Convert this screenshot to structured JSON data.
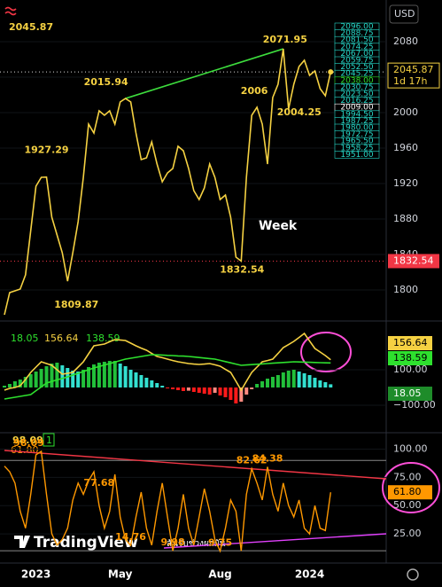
{
  "chart_data": [
    {
      "type": "line",
      "currency": "USD",
      "timeframe": "Week",
      "countdown": "1d 17h",
      "categories": [
        null,
        null,
        null,
        null,
        null,
        null,
        "2023",
        null,
        null,
        null,
        null,
        null,
        null,
        null,
        null,
        null,
        null,
        null,
        null,
        null,
        null,
        null,
        "May",
        null,
        null,
        null,
        null,
        null,
        null,
        null,
        null,
        null,
        null,
        null,
        null,
        null,
        null,
        null,
        null,
        null,
        null,
        "Aug",
        null,
        null,
        null,
        null,
        null,
        null,
        null,
        null,
        null,
        null,
        null,
        null,
        null,
        null,
        null,
        null,
        "2024",
        null,
        null,
        null,
        null
      ],
      "series": [
        {
          "color": "#f5d142",
          "values": [
            1772,
            1797,
            1799,
            1801,
            1817,
            1867,
            1917,
            1927,
            1927.29,
            1882,
            1862,
            1842,
            1809.87,
            1842,
            1877,
            1927,
            1987,
            1977,
            2002,
            1997,
            2002,
            1987,
            2012,
            2015.94,
            2012,
            1977,
            1947,
            1949,
            1967,
            1942,
            1922,
            1932,
            1937,
            1962,
            1957,
            1937,
            1912,
            1902,
            1915,
            1942,
            1927,
            1902,
            1907,
            1882,
            1837,
            1832.54,
            1927,
            1997,
            2006,
            1987,
            1942,
            2017,
            2032,
            2071.95,
            2004.25,
            2032,
            2052,
            2059,
            2042,
            2047,
            2027,
            2019,
            2045.87
          ]
        }
      ],
      "trendline_color": "#3ddc3d",
      "low_price": 1832.54,
      "price_levels": [
        "2096.00",
        "2088.75",
        "2081.50",
        "2074.25",
        "2067.00",
        "2059.75",
        "2052.50",
        "2045.25",
        "2038.00",
        "2030.75",
        "2023.50",
        "2016.25",
        "2009.00",
        "1994.50",
        "1987.25",
        "1980.00",
        "1972.75",
        "1965.50",
        "1958.25",
        "1951.00"
      ],
      "ylim": [
        1769,
        2127
      ],
      "yticks": [
        1800,
        1840,
        1880,
        1920,
        1960,
        2000,
        2040,
        2080
      ]
    },
    {
      "type": "macd",
      "hist_colors": [
        "#22c03a",
        "#33e0d0",
        "#ff8a80",
        "#ff1a1a"
      ],
      "series": [
        {
          "values": [
            10,
            20,
            35,
            45,
            60,
            75,
            90,
            105,
            120,
            135,
            140,
            125,
            110,
            95,
            90,
            100,
            115,
            130,
            140,
            145,
            150,
            150,
            135,
            120,
            100,
            85,
            70,
            55,
            40,
            25,
            10,
            -5,
            -10,
            -15,
            -20,
            -18,
            -25,
            -30,
            -35,
            -40,
            -30,
            -45,
            -55,
            -70,
            -90,
            -80,
            -40,
            -10,
            20,
            35,
            50,
            60,
            70,
            85,
            95,
            100,
            90,
            80,
            70,
            55,
            40,
            30,
            18.05
          ]
        },
        {
          "color": "#f5d142",
          "values": [
            -15,
            -5,
            0,
            10,
            45,
            85,
            115,
            145,
            135,
            125,
            100,
            75,
            80,
            85,
            115,
            145,
            190,
            235,
            240,
            245,
            258,
            270,
            268,
            265,
            250,
            235,
            222,
            210,
            192,
            175,
            168,
            160,
            152,
            145,
            140,
            135,
            132,
            130,
            132,
            135,
            128,
            120,
            102,
            85,
            35,
            -15,
            35,
            85,
            115,
            145,
            152,
            160,
            192,
            225,
            242,
            260,
            282,
            305,
            262,
            220,
            200,
            180,
            156.64
          ]
        },
        {
          "color": "#2ee02e",
          "values": [
            -65,
            -60,
            -55,
            -50,
            -45,
            -40,
            -18,
            3,
            25,
            34,
            43,
            51,
            60,
            70,
            80,
            90,
            100,
            110,
            118,
            127,
            135,
            143,
            152,
            160,
            165,
            170,
            175,
            180,
            185,
            184,
            183,
            181,
            180,
            178,
            177,
            175,
            172,
            169,
            166,
            163,
            160,
            153,
            146,
            139,
            132,
            125,
            127,
            129,
            131,
            133,
            135,
            137,
            139,
            141,
            143,
            145,
            144,
            143,
            142,
            141,
            140,
            139,
            138.59
          ]
        }
      ],
      "ylim": [
        -250,
        355
      ],
      "yticks": [
        {
          "value": 100,
          "label": "100.00"
        },
        {
          "value": -100,
          "label": "−100.00"
        }
      ]
    },
    {
      "type": "line",
      "badge": "1",
      "series": [
        {
          "color": "#ff9800",
          "values": [
            85,
            80,
            70,
            45,
            30,
            60,
            95,
            98.09,
            60,
            25,
            15,
            20,
            30,
            55,
            70,
            60,
            72,
            80,
            50,
            30,
            45,
            77.68,
            40,
            20,
            14.76,
            40,
            62,
            30,
            15,
            45,
            70,
            40,
            9.98,
            30,
            60,
            30,
            15,
            40,
            65,
            45,
            20,
            9.75,
            30,
            55,
            45,
            10,
            60,
            82.62,
            70,
            55,
            84.38,
            60,
            45,
            70,
            50,
            40,
            55,
            30,
            25,
            50,
            30,
            28,
            61.8
          ],
          "value_labels": [
            null,
            null,
            null,
            null,
            null,
            null,
            null,
            "98.09",
            null,
            null,
            null,
            null,
            null,
            null,
            null,
            null,
            null,
            null,
            null,
            null,
            null,
            "77.68",
            null,
            null,
            "14.76",
            null,
            null,
            null,
            null,
            null,
            null,
            null,
            "9.98",
            null,
            null,
            null,
            null,
            null,
            null,
            null,
            null,
            "9.75",
            null,
            null,
            null,
            null,
            null,
            "82.62",
            null,
            null,
            "84.38",
            null,
            null,
            null,
            null,
            null,
            null,
            null,
            null,
            null,
            null,
            null,
            "61.80"
          ]
        }
      ],
      "hlines": [
        90,
        10
      ],
      "hline_color": "#888888",
      "annotation": "สันรับช่วงผกผัน",
      "ylim": [
        7,
        113
      ],
      "yticks": [
        {
          "value": 100,
          "label": "100.00"
        },
        {
          "value": 75,
          "label": "75.00"
        },
        {
          "value": 50,
          "label": "50.00"
        },
        {
          "value": 25,
          "label": "25.00"
        }
      ]
    }
  ],
  "brand": "TradingView"
}
